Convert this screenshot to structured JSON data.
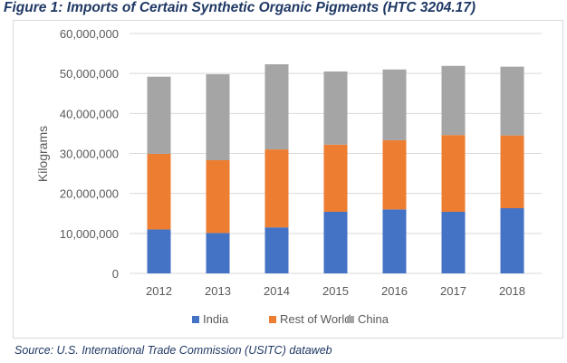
{
  "title": "Figure 1: Imports of Certain Synthetic Organic Pigments (HTC 3204.17)",
  "source": "Source: U.S. International Trade Commission (USITC) dataweb",
  "chart_data": {
    "type": "bar",
    "stacked": true,
    "title": "Figure 1: Imports of Certain Synthetic Organic Pigments (HTC 3204.17)",
    "xlabel": "",
    "ylabel": "Kilograms",
    "ylim": [
      0,
      60000000
    ],
    "yticks": [
      "0",
      "10,000,000",
      "20,000,000",
      "30,000,000",
      "40,000,000",
      "50,000,000",
      "60,000,000"
    ],
    "categories": [
      "2012",
      "2013",
      "2014",
      "2015",
      "2016",
      "2017",
      "2018"
    ],
    "series": [
      {
        "name": "India",
        "color": "#4472c4",
        "values": [
          11000000,
          10100000,
          11500000,
          15400000,
          16000000,
          15400000,
          16300000
        ]
      },
      {
        "name": "Rest of World",
        "color": "#ed7d31",
        "values": [
          18900000,
          18200000,
          19500000,
          16800000,
          17300000,
          19200000,
          18200000
        ]
      },
      {
        "name": "China",
        "color": "#a5a5a5",
        "values": [
          19300000,
          21500000,
          21300000,
          18300000,
          17700000,
          17300000,
          17200000
        ]
      }
    ],
    "grid": true,
    "legend": "bottom"
  }
}
